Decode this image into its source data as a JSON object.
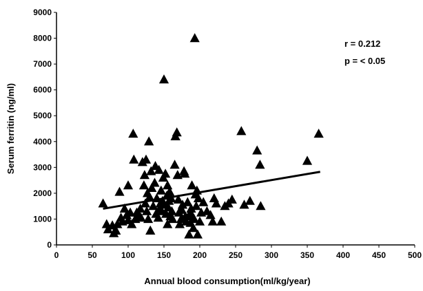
{
  "chart_data": {
    "type": "scatter",
    "xlabel": "Annual blood consumption(ml/kg/year)",
    "ylabel": "Serum ferritin (ng/ml)",
    "xlim": [
      0,
      500
    ],
    "ylim": [
      0,
      9000
    ],
    "xticks": [
      0,
      50,
      100,
      150,
      200,
      250,
      300,
      350,
      400,
      450,
      500
    ],
    "yticks": [
      0,
      1000,
      2000,
      3000,
      4000,
      5000,
      6000,
      7000,
      8000,
      9000
    ],
    "grid": false,
    "marker": "triangle",
    "annotations": [
      "r = 0.212",
      "p = < 0.05"
    ],
    "trendline": {
      "x": [
        65,
        368
      ],
      "y": [
        1400,
        2830
      ]
    },
    "points": [
      [
        65,
        1600
      ],
      [
        70,
        800
      ],
      [
        72,
        600
      ],
      [
        78,
        750
      ],
      [
        80,
        450
      ],
      [
        83,
        550
      ],
      [
        85,
        800
      ],
      [
        88,
        2050
      ],
      [
        90,
        1050
      ],
      [
        92,
        900
      ],
      [
        95,
        1400
      ],
      [
        98,
        1150
      ],
      [
        100,
        950
      ],
      [
        100,
        2300
      ],
      [
        103,
        1250
      ],
      [
        105,
        800
      ],
      [
        107,
        4300
      ],
      [
        108,
        3300
      ],
      [
        110,
        1000
      ],
      [
        112,
        1250
      ],
      [
        115,
        1150
      ],
      [
        117,
        1400
      ],
      [
        118,
        1050
      ],
      [
        120,
        3200
      ],
      [
        122,
        2300
      ],
      [
        123,
        2700
      ],
      [
        124,
        1600
      ],
      [
        125,
        3300
      ],
      [
        126,
        1300
      ],
      [
        127,
        2000
      ],
      [
        128,
        1000
      ],
      [
        129,
        4000
      ],
      [
        130,
        1850
      ],
      [
        131,
        550
      ],
      [
        132,
        2850
      ],
      [
        133,
        2200
      ],
      [
        135,
        1500
      ],
      [
        137,
        2400
      ],
      [
        138,
        3050
      ],
      [
        139,
        1200
      ],
      [
        140,
        1800
      ],
      [
        142,
        1050
      ],
      [
        143,
        2900
      ],
      [
        144,
        1400
      ],
      [
        145,
        1600
      ],
      [
        146,
        2100
      ],
      [
        147,
        1300
      ],
      [
        148,
        1700
      ],
      [
        149,
        2600
      ],
      [
        150,
        6400
      ],
      [
        151,
        1550
      ],
      [
        152,
        2750
      ],
      [
        153,
        1200
      ],
      [
        154,
        1900
      ],
      [
        155,
        2300
      ],
      [
        155,
        800
      ],
      [
        156,
        1450
      ],
      [
        157,
        1700
      ],
      [
        158,
        2050
      ],
      [
        159,
        1100
      ],
      [
        160,
        1800
      ],
      [
        161,
        1300
      ],
      [
        162,
        1000
      ],
      [
        165,
        3100
      ],
      [
        166,
        4200
      ],
      [
        168,
        4350
      ],
      [
        169,
        2700
      ],
      [
        170,
        1750
      ],
      [
        171,
        1250
      ],
      [
        172,
        800
      ],
      [
        174,
        1000
      ],
      [
        175,
        1350
      ],
      [
        176,
        1550
      ],
      [
        178,
        2850
      ],
      [
        179,
        2750
      ],
      [
        180,
        1100
      ],
      [
        181,
        900
      ],
      [
        183,
        1650
      ],
      [
        185,
        400
      ],
      [
        186,
        1200
      ],
      [
        187,
        850
      ],
      [
        188,
        1400
      ],
      [
        189,
        2300
      ],
      [
        190,
        1100
      ],
      [
        191,
        650
      ],
      [
        192,
        1000
      ],
      [
        193,
        8000
      ],
      [
        194,
        1950
      ],
      [
        195,
        1500
      ],
      [
        196,
        2100
      ],
      [
        197,
        400
      ],
      [
        198,
        1800
      ],
      [
        200,
        900
      ],
      [
        202,
        1250
      ],
      [
        205,
        1650
      ],
      [
        210,
        1300
      ],
      [
        215,
        1150
      ],
      [
        218,
        900
      ],
      [
        220,
        1800
      ],
      [
        223,
        1600
      ],
      [
        230,
        900
      ],
      [
        235,
        1500
      ],
      [
        240,
        1600
      ],
      [
        245,
        1750
      ],
      [
        258,
        4400
      ],
      [
        262,
        1550
      ],
      [
        270,
        1700
      ],
      [
        280,
        3650
      ],
      [
        284,
        3100
      ],
      [
        285,
        1500
      ],
      [
        350,
        3250
      ],
      [
        366,
        4300
      ]
    ]
  }
}
